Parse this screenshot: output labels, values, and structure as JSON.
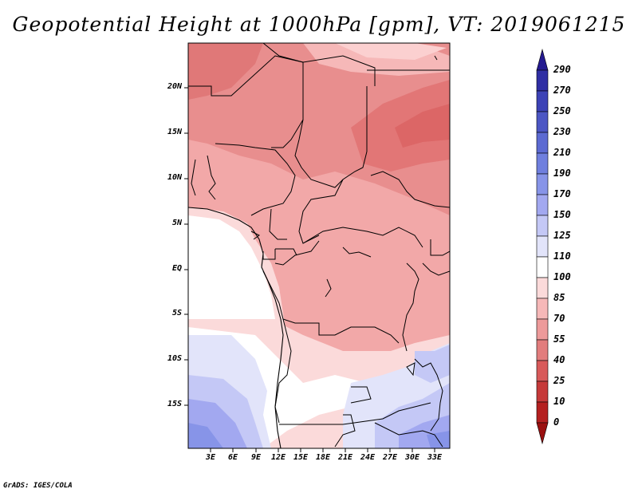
{
  "title": "Geopotential Height at 1000hPa [gpm], VT: 2019061215",
  "credit": "GrADS: IGES/COLA",
  "map": {
    "region": "Central Africa",
    "lat_labels": [
      "20N",
      "15N",
      "10N",
      "5N",
      "EQ",
      "5S",
      "10S",
      "15S"
    ],
    "lon_labels": [
      "3E",
      "6E",
      "9E",
      "12E",
      "15E",
      "18E",
      "21E",
      "24E",
      "27E",
      "30E",
      "33E"
    ]
  },
  "colorbar": {
    "labels": [
      "290",
      "270",
      "250",
      "230",
      "210",
      "190",
      "170",
      "150",
      "125",
      "110",
      "100",
      "85",
      "70",
      "55",
      "40",
      "25",
      "10",
      "0"
    ],
    "colors": [
      "#241a90",
      "#2f2ea4",
      "#3c42b6",
      "#4c56c4",
      "#5c6ad2",
      "#6f7fde",
      "#8794e8",
      "#a2a8f0",
      "#c4c8f6",
      "#e2e4fa",
      "#ffffff",
      "#fbdada",
      "#f6b8b8",
      "#ed9a9a",
      "#e27d7d",
      "#d85a5a",
      "#c63a3a",
      "#b42020",
      "#9a1010"
    ]
  }
}
